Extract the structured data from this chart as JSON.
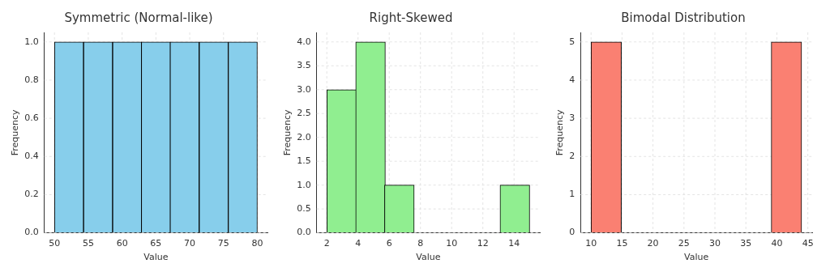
{
  "chart_data": [
    {
      "type": "histogram",
      "title": "Symmetric (Normal-like)",
      "xlabel": "Value",
      "ylabel": "Frequency",
      "bins": [
        50,
        54.3,
        58.6,
        62.9,
        67.1,
        71.4,
        75.7,
        80
      ],
      "values": [
        1,
        1,
        1,
        1,
        1,
        1,
        1
      ],
      "color": "#87ceeb",
      "xlim": [
        48.5,
        81.5
      ],
      "xticks": [
        50,
        55,
        60,
        65,
        70,
        75,
        80
      ],
      "ylim": [
        0,
        1.05
      ],
      "yticks": [
        {
          "value": 0,
          "label": "0.0"
        },
        0.2,
        0.4,
        0.6,
        0.8,
        {
          "value": 1,
          "label": "1.0"
        }
      ],
      "grid": true
    },
    {
      "type": "histogram",
      "title": "Right-Skewed",
      "xlabel": "Value",
      "ylabel": "Frequency",
      "bins": [
        2,
        3.9,
        5.7,
        7.6,
        9.4,
        11.3,
        13.1,
        15
      ],
      "values": [
        3,
        4,
        1,
        0,
        0,
        0,
        1
      ],
      "color": "#90ee90",
      "xlim": [
        1.35,
        15.65
      ],
      "xticks": [
        2,
        4,
        6,
        8,
        10,
        12,
        14
      ],
      "ylim": [
        0,
        4.2
      ],
      "yticks": [
        {
          "value": 0,
          "label": "0.0"
        },
        0.5,
        {
          "value": 1,
          "label": "1.0"
        },
        1.5,
        {
          "value": 2,
          "label": "2.0"
        },
        2.5,
        {
          "value": 3,
          "label": "3.0"
        },
        3.5,
        {
          "value": 4,
          "label": "4.0"
        }
      ],
      "grid": true
    },
    {
      "type": "histogram",
      "title": "Bimodal Distribution",
      "xlabel": "Value",
      "ylabel": "Frequency",
      "bins": [
        10,
        14.9,
        19.7,
        24.6,
        29.4,
        34.3,
        39.1,
        44
      ],
      "values": [
        5,
        0,
        0,
        0,
        0,
        0,
        5
      ],
      "color": "#fa8072",
      "xlim": [
        8.3,
        45.7
      ],
      "xticks": [
        10,
        15,
        20,
        25,
        30,
        35,
        40,
        45
      ],
      "ylim": [
        0,
        5.25
      ],
      "yticks": [
        0,
        1,
        2,
        3,
        4,
        5
      ],
      "grid": true
    }
  ]
}
